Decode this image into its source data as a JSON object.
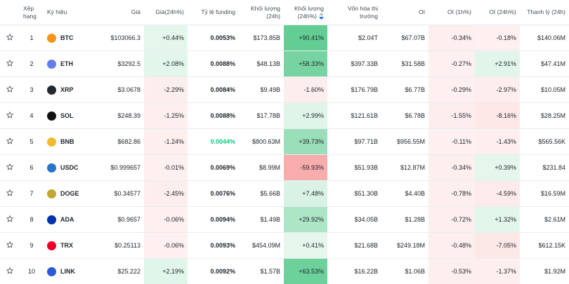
{
  "table": {
    "headers": [
      "Xếp hạng",
      "Ký hiệu",
      "Giá",
      "Giá(24h%)",
      "Tỷ lệ funding",
      "Khối lượng (24h)",
      "Khối lượng (24h%)",
      "Vốn hóa thị trường",
      "OI",
      "OI (1h%)",
      "OI (24h%)",
      "Thanh lý (24h)"
    ],
    "rows": [
      [
        "1",
        "BTC",
        "$103066.3",
        "+0.44%",
        "0.0053%",
        "$173.85B",
        "+90.41%",
        "$2.04T",
        "$67.07B",
        "-0.34%",
        "-0.18%",
        "$140.06M"
      ],
      [
        "2",
        "ETH",
        "$3292.5",
        "+2.08%",
        "0.0088%",
        "$48.13B",
        "+58.33%",
        "$397.33B",
        "$31.58B",
        "-0.27%",
        "+2.91%",
        "$47.41M"
      ],
      [
        "3",
        "XRP",
        "$3.0678",
        "-2.29%",
        "0.0084%",
        "$9.49B",
        "-1.60%",
        "$176.79B",
        "$6.77B",
        "-0.29%",
        "-2.97%",
        "$10.05M"
      ],
      [
        "4",
        "SOL",
        "$248.39",
        "-1.25%",
        "0.0088%",
        "$17.78B",
        "+2.99%",
        "$121.61B",
        "$6.78B",
        "-1.55%",
        "-8.16%",
        "$28.25M"
      ],
      [
        "5",
        "BNB",
        "$682.86",
        "-1.24%",
        "0.0044%",
        "$800.63M",
        "+39.73%",
        "$97.71B",
        "$956.55M",
        "-0.11%",
        "-1.43%",
        "$565.56K"
      ],
      [
        "6",
        "USDC",
        "$0.999657",
        "-0.01%",
        "0.0069%",
        "$8.99M",
        "-59.93%",
        "$51.93B",
        "$12.87M",
        "-0.34%",
        "+0.39%",
        "$231.84"
      ],
      [
        "7",
        "DOGE",
        "$0.34577",
        "-2.45%",
        "0.0076%",
        "$5.66B",
        "+7.48%",
        "$51.30B",
        "$4.40B",
        "-0.78%",
        "-4.59%",
        "$16.59M"
      ],
      [
        "8",
        "ADA",
        "$0.9657",
        "-0.06%",
        "0.0094%",
        "$1.49B",
        "+29.92%",
        "$34.05B",
        "$1.28B",
        "-0.72%",
        "+1.32%",
        "$2.61M"
      ],
      [
        "9",
        "TRX",
        "$0.25113",
        "-0.06%",
        "0.0093%",
        "$454.09M",
        "+0.41%",
        "$21.68B",
        "$249.18M",
        "-0.48%",
        "-7.05%",
        "$612.15K"
      ],
      [
        "10",
        "LINK",
        "$25.222",
        "+2.19%",
        "0.0092%",
        "$1.57B",
        "+63.53%",
        "$16.22B",
        "$1.06B",
        "-0.53%",
        "-1.37%",
        "$1.92M"
      ]
    ]
  }
}
